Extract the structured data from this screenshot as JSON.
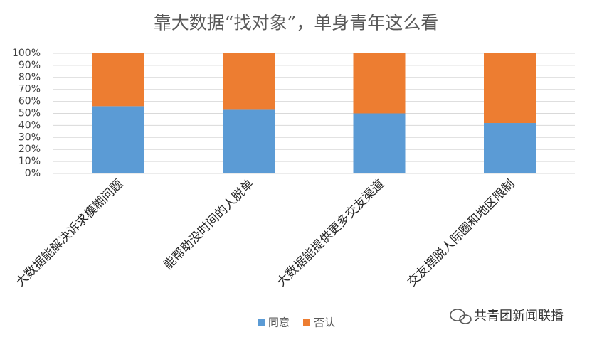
{
  "chart_data": {
    "type": "stacked_bar",
    "title": "靠大数据“找对象”，单身青年这么看",
    "categories": [
      "大数据能解决诉求模糊问题",
      "能帮助没时间的人脱单",
      "大数据能提供更多交友渠道",
      "交友摆脱人际圈和地区限制"
    ],
    "series": [
      {
        "name": "同意",
        "color": "#5b9bd5",
        "values": [
          56,
          53,
          50,
          42
        ]
      },
      {
        "name": "否认",
        "color": "#ed7d31",
        "values": [
          44,
          47,
          50,
          58
        ]
      }
    ],
    "ylim": [
      0,
      100
    ],
    "yticks": [
      {
        "value": 0,
        "label": "0%"
      },
      {
        "value": 10,
        "label": "10%"
      },
      {
        "value": 20,
        "label": "20%"
      },
      {
        "value": 30,
        "label": "30%"
      },
      {
        "value": 40,
        "label": "40%"
      },
      {
        "value": 50,
        "label": "50%"
      },
      {
        "value": 60,
        "label": "60%"
      },
      {
        "value": 70,
        "label": "70%"
      },
      {
        "value": 80,
        "label": "80%"
      },
      {
        "value": 90,
        "label": "90%"
      },
      {
        "value": 100,
        "label": "100%"
      }
    ],
    "grid": true,
    "legend": "bottom",
    "watermark": "共青团新闻联播"
  }
}
